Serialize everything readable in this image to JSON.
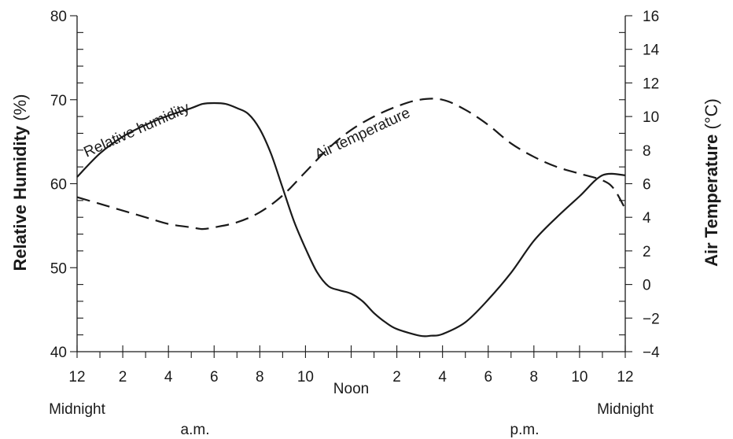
{
  "chart_data": {
    "type": "line",
    "x_ticks": [
      {
        "hour": 0,
        "label": "12"
      },
      {
        "hour": 2,
        "label": "2"
      },
      {
        "hour": 4,
        "label": "4"
      },
      {
        "hour": 6,
        "label": "6"
      },
      {
        "hour": 8,
        "label": "8"
      },
      {
        "hour": 10,
        "label": "10"
      },
      {
        "hour": 12,
        "label": "Noon"
      },
      {
        "hour": 14,
        "label": "2"
      },
      {
        "hour": 16,
        "label": "4"
      },
      {
        "hour": 18,
        "label": "6"
      },
      {
        "hour": 20,
        "label": "8"
      },
      {
        "hour": 22,
        "label": "10"
      },
      {
        "hour": 24,
        "label": "12"
      }
    ],
    "x_sublabels": {
      "left": "Midnight",
      "right": "Midnight",
      "am": "a.m.",
      "pm": "p.m."
    },
    "xlim": [
      0,
      24
    ],
    "y_left": {
      "label": "Relative Humidity",
      "unit": "(%)",
      "lim": [
        40,
        80
      ],
      "ticks": [
        40,
        50,
        60,
        70,
        80
      ]
    },
    "y_right": {
      "label": "Air Temperature",
      "unit": "(°C)",
      "lim": [
        -4,
        16
      ],
      "ticks": [
        -4,
        -2,
        0,
        2,
        4,
        6,
        8,
        10,
        12,
        14,
        16
      ],
      "tick_labels": [
        "−4",
        "−2",
        "0",
        "2",
        "4",
        "6",
        "8",
        "10",
        "12",
        "14",
        "16"
      ]
    },
    "series": [
      {
        "name": "Relative humidity",
        "axis": "left",
        "style": "solid",
        "color": "#1a1a1a",
        "x": [
          0,
          1,
          2,
          3,
          4,
          5,
          5.5,
          6,
          6.5,
          7,
          7.5,
          8,
          8.5,
          9,
          9.5,
          10,
          10.5,
          11,
          11.5,
          12,
          12.5,
          13,
          13.5,
          14,
          15,
          15.5,
          16,
          17,
          18,
          19,
          20,
          21,
          22,
          23,
          24
        ],
        "y": [
          60.8,
          63.6,
          65.6,
          67.0,
          68.1,
          69.0,
          69.5,
          69.6,
          69.5,
          69.0,
          68.3,
          66.5,
          63.5,
          59.5,
          55.5,
          52.3,
          49.5,
          47.8,
          47.3,
          46.9,
          46.0,
          44.6,
          43.5,
          42.7,
          41.9,
          41.9,
          42.1,
          43.5,
          46.2,
          49.4,
          53.2,
          56.0,
          58.5,
          61.0,
          61.0
        ]
      },
      {
        "name": "Air temperature",
        "axis": "right",
        "style": "dashed",
        "color": "#1a1a1a",
        "x": [
          0,
          1,
          2,
          3,
          4,
          5,
          5.5,
          6,
          7,
          8,
          9,
          10,
          11,
          12,
          13,
          14,
          15,
          16,
          17,
          18,
          19,
          20,
          21,
          22,
          23,
          23.5,
          24
        ],
        "y": [
          5.2,
          4.8,
          4.4,
          4.0,
          3.6,
          3.4,
          3.3,
          3.4,
          3.7,
          4.3,
          5.3,
          6.7,
          8.1,
          9.2,
          10.0,
          10.6,
          11.0,
          11.0,
          10.4,
          9.5,
          8.4,
          7.6,
          7.0,
          6.6,
          6.2,
          5.7,
          4.5
        ]
      }
    ],
    "annotations": [
      {
        "text": "Relative humidity",
        "series": "Relative humidity"
      },
      {
        "text": "Air temperature",
        "series": "Air temperature"
      }
    ],
    "grid": false,
    "legend": "none"
  }
}
